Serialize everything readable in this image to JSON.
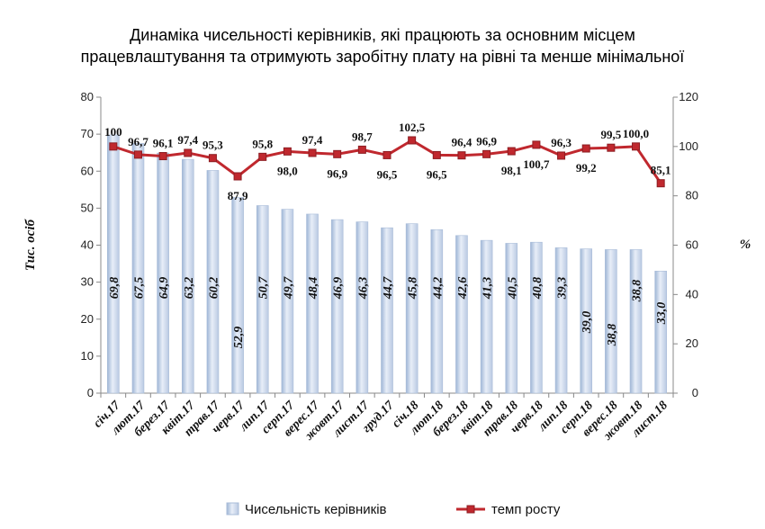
{
  "chart_data": {
    "type": "bar+line",
    "title_lines": [
      "Динаміка чисельності керівників, які працюють за основним місцем",
      "працевлаштування та отримують заробітну плату на рівні та менше мінімальної"
    ],
    "categories": [
      "січ.17",
      "лют.17",
      "берез.17",
      "квіт.17",
      "трав.17",
      "черв.17",
      "лип.17",
      "серп.17",
      "верес.17",
      "жовт.17",
      "лист.17",
      "груд.17",
      "січ.18",
      "лют.18",
      "берез.18",
      "квіт.18",
      "трав.18",
      "черв.18",
      "лип.18",
      "серп.18",
      "верес.18",
      "жовт.18",
      "лист.18"
    ],
    "ylabel_left": "Тис. осіб",
    "ylabel_right": "%",
    "ylim_left": [
      0,
      80
    ],
    "ylim_right": [
      0,
      120
    ],
    "yticks_left": [
      "0",
      "10",
      "20",
      "30",
      "40",
      "50",
      "60",
      "70",
      "80"
    ],
    "yticks_right": [
      "0",
      "20",
      "40",
      "60",
      "80",
      "100",
      "120"
    ],
    "series": [
      {
        "name": "Чисельність керівників",
        "type": "bar",
        "axis": "left",
        "values": [
          69.8,
          67.5,
          64.9,
          63.2,
          60.2,
          52.9,
          50.7,
          49.7,
          48.4,
          46.9,
          46.3,
          44.7,
          45.8,
          44.2,
          42.6,
          41.3,
          40.5,
          40.8,
          39.3,
          39.0,
          38.8,
          38.8,
          33.0
        ],
        "labels": [
          "69,8",
          "67,5",
          "64,9",
          "63,2",
          "60,2",
          "52,9",
          "50,7",
          "49,7",
          "48,4",
          "46,9",
          "46,3",
          "44,7",
          "45,8",
          "44,2",
          "42,6",
          "41,3",
          "40,5",
          "40,8",
          "39,3",
          "39,0",
          "38,8",
          "38,8",
          "33,0"
        ]
      },
      {
        "name": "темп росту",
        "type": "line",
        "axis": "right",
        "color": "#c0282e",
        "values": [
          100,
          96.7,
          96.1,
          97.4,
          95.3,
          87.9,
          95.8,
          98.0,
          97.4,
          96.9,
          98.7,
          96.5,
          102.5,
          96.5,
          96.4,
          96.9,
          98.1,
          100.7,
          96.3,
          99.2,
          99.5,
          100.0,
          85.1
        ],
        "labels": [
          "100",
          "96,7",
          "96,1",
          "97,4",
          "95,3",
          "87,9",
          "95,8",
          "98,0",
          "97,4",
          "96,9",
          "98,7",
          "96,5",
          "102,5",
          "96,5",
          "96,4",
          "96,9",
          "98,1",
          "100,7",
          "96,3",
          "99,2",
          "99,5",
          "100,0",
          "85,1"
        ]
      }
    ],
    "legend_position": "bottom",
    "grid": false
  }
}
